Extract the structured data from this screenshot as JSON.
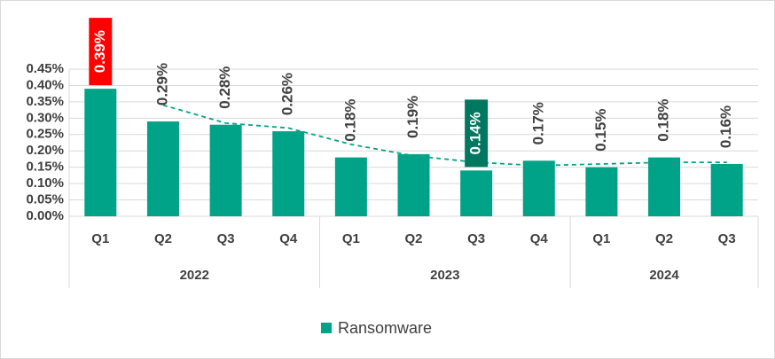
{
  "chart_data": {
    "type": "bar",
    "groups": [
      {
        "name": "2022",
        "categories": [
          "Q1",
          "Q2",
          "Q3",
          "Q4"
        ]
      },
      {
        "name": "2023",
        "categories": [
          "Q1",
          "Q2",
          "Q3",
          "Q4"
        ]
      },
      {
        "name": "2024",
        "categories": [
          "Q1",
          "Q2",
          "Q3"
        ]
      }
    ],
    "series": [
      {
        "name": "Ransomware",
        "color": "#00a387",
        "values": [
          0.39,
          0.29,
          0.28,
          0.26,
          0.18,
          0.19,
          0.14,
          0.17,
          0.15,
          0.18,
          0.16
        ],
        "value_labels": [
          "0.39%",
          "0.29%",
          "0.28%",
          "0.26%",
          "0.18%",
          "0.19%",
          "0.14%",
          "0.17%",
          "0.15%",
          "0.18%",
          "0.16%"
        ],
        "value_label_backgrounds": [
          "#ff0000",
          null,
          null,
          null,
          null,
          null,
          "#00785f",
          null,
          null,
          null,
          null
        ]
      }
    ],
    "trendline": {
      "type": "moving_average",
      "color": "#00a387",
      "dashed": true,
      "values": [
        null,
        0.34,
        0.285,
        0.27,
        0.22,
        0.185,
        0.165,
        0.155,
        0.16,
        0.165,
        0.165
      ]
    },
    "ylim": [
      0,
      0.45
    ],
    "yticks": [
      {
        "value": 0,
        "label": "0.00%"
      },
      {
        "value": 0.05,
        "label": "0.05%"
      },
      {
        "value": 0.1,
        "label": "0.10%"
      },
      {
        "value": 0.15,
        "label": "0.15%"
      },
      {
        "value": 0.2,
        "label": "0.20%"
      },
      {
        "value": 0.25,
        "label": "0.25%"
      },
      {
        "value": 0.3,
        "label": "0.30%"
      },
      {
        "value": 0.35,
        "label": "0.35%"
      },
      {
        "value": 0.4,
        "label": "0.40%"
      },
      {
        "value": 0.45,
        "label": "0.45%"
      }
    ],
    "grid": true,
    "legend": "bottom"
  }
}
